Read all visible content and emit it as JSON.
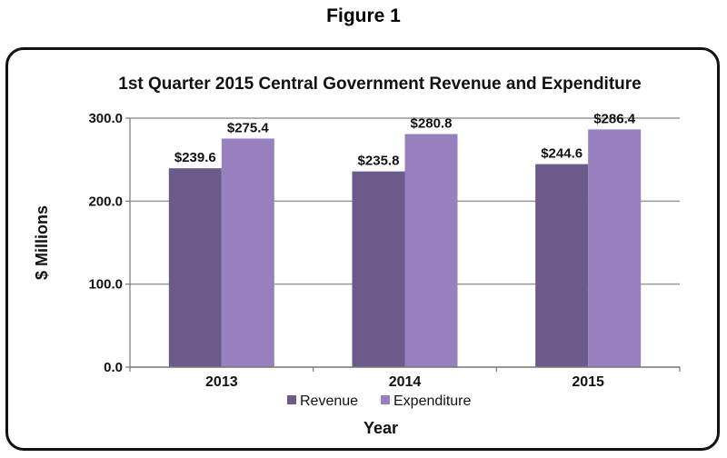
{
  "figure_label": "Figure 1",
  "colors": {
    "Revenue": "#6b5a8a",
    "Expenditure": "#9780bd",
    "grid": "#999999"
  },
  "chart_data": {
    "type": "bar",
    "title": "1st Quarter 2015 Central Government Revenue and Expenditure",
    "xlabel": "Year",
    "ylabel": "$ Millions",
    "categories": [
      "2013",
      "2014",
      "2015"
    ],
    "series": [
      {
        "name": "Revenue",
        "values": [
          239.6,
          235.8,
          244.6
        ],
        "labels": [
          "$239.6",
          "$235.8",
          "$244.6"
        ]
      },
      {
        "name": "Expenditure",
        "values": [
          275.4,
          280.8,
          286.4
        ],
        "labels": [
          "$275.4",
          "$280.8",
          "$286.4"
        ]
      }
    ],
    "ylim": [
      0,
      300
    ],
    "yticks": [
      0,
      100,
      200,
      300
    ],
    "ytick_labels": [
      "0.0",
      "100.0",
      "200.0",
      "300.0"
    ],
    "grid": true,
    "legend_position": "bottom"
  }
}
